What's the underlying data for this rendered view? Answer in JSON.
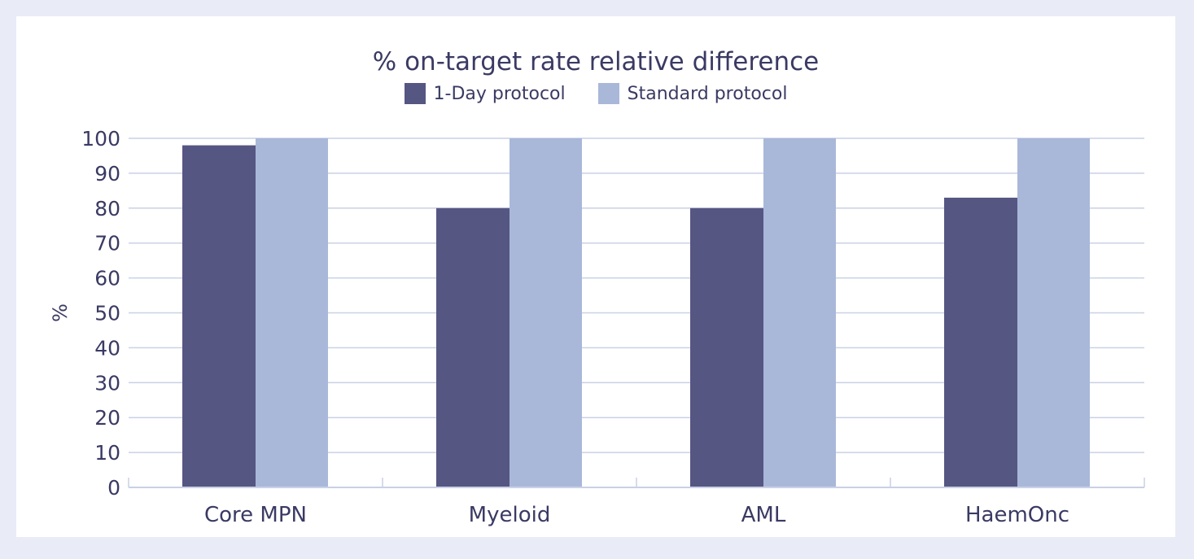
{
  "chart_data": {
    "type": "bar",
    "title": "% on-target rate relative difference",
    "ylabel": "%",
    "xlabel": "",
    "ylim": [
      0,
      100
    ],
    "yticks": [
      0,
      10,
      20,
      30,
      40,
      50,
      60,
      70,
      80,
      90,
      100
    ],
    "categories": [
      "Core MPN",
      "Myeloid",
      "AML",
      "HaemOnc"
    ],
    "series": [
      {
        "name": "1-Day protocol",
        "color": "#565683",
        "values": [
          98,
          80,
          80,
          83
        ]
      },
      {
        "name": "Standard protocol",
        "color": "#a9b8d9",
        "values": [
          100,
          100,
          100,
          100
        ]
      }
    ],
    "grid": true,
    "legend_position": "top-center"
  }
}
